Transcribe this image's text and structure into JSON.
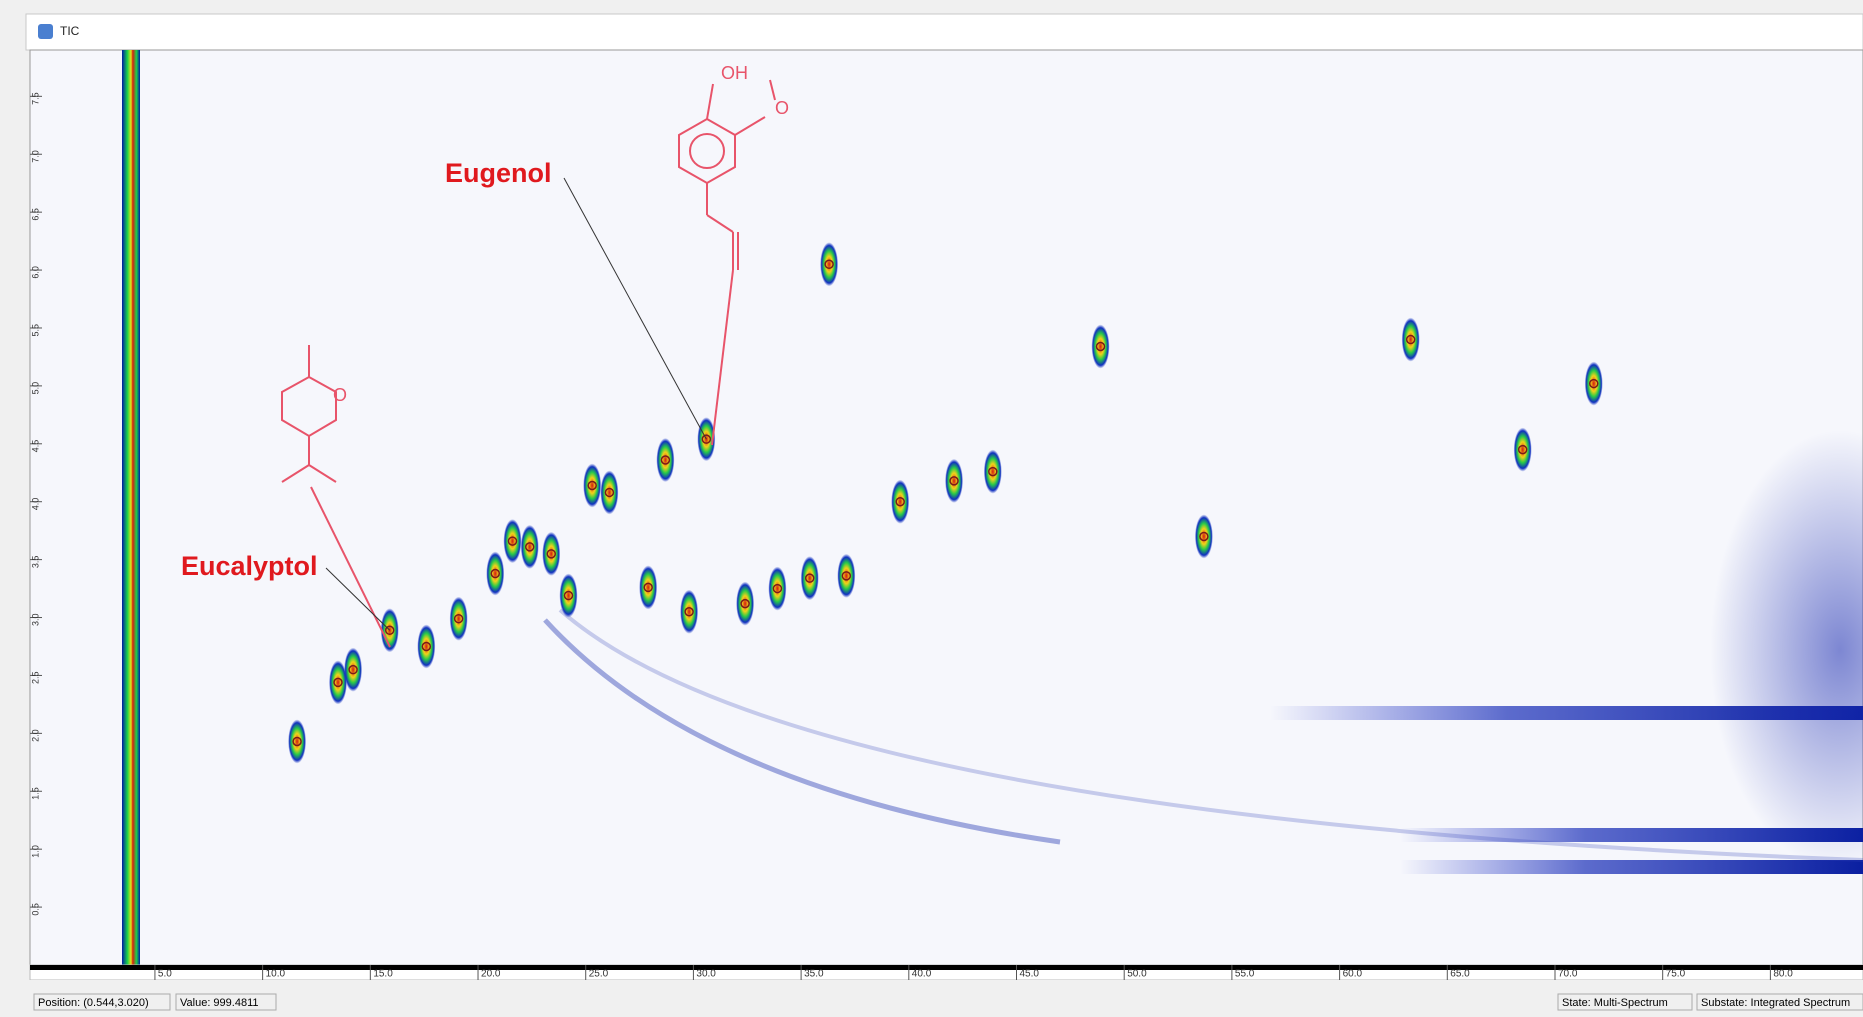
{
  "window": {
    "title": "TIC"
  },
  "plot": {
    "xlim": [
      -0.8,
      84.3
    ],
    "ylim": [
      0,
      7.9
    ],
    "xticks": [
      {
        "value": 5,
        "label": "5.0"
      },
      {
        "value": 10,
        "label": "10.0"
      },
      {
        "value": 15,
        "label": "15.0"
      },
      {
        "value": 20,
        "label": "20.0"
      },
      {
        "value": 25,
        "label": "25.0"
      },
      {
        "value": 30,
        "label": "30.0"
      },
      {
        "value": 35,
        "label": "35.0"
      },
      {
        "value": 40,
        "label": "40.0"
      },
      {
        "value": 45,
        "label": "45.0"
      },
      {
        "value": 50,
        "label": "50.0"
      },
      {
        "value": 55,
        "label": "55.0"
      },
      {
        "value": 60,
        "label": "60.0"
      },
      {
        "value": 65,
        "label": "65.0"
      },
      {
        "value": 70,
        "label": "70.0"
      },
      {
        "value": 75,
        "label": "75.0"
      },
      {
        "value": 80,
        "label": "80.0"
      }
    ],
    "yticks": [
      {
        "value": 0.5,
        "label": "0.5"
      },
      {
        "value": 1,
        "label": "1.0"
      },
      {
        "value": 1.5,
        "label": "1.5"
      },
      {
        "value": 2,
        "label": "2.0"
      },
      {
        "value": 2.5,
        "label": "2.5"
      },
      {
        "value": 3,
        "label": "3.0"
      },
      {
        "value": 3.5,
        "label": "3.5"
      },
      {
        "value": 4,
        "label": "4.0"
      },
      {
        "value": 4.5,
        "label": "4.5"
      },
      {
        "value": 5,
        "label": "5.0"
      },
      {
        "value": 5.5,
        "label": "5.5"
      },
      {
        "value": 6,
        "label": "6.0"
      },
      {
        "value": 6.5,
        "label": "6.5"
      },
      {
        "value": 7,
        "label": "7.0"
      },
      {
        "value": 7.5,
        "label": "7.5"
      }
    ],
    "peaks": {
      "x": [
        11.6,
        13.5,
        14.2,
        15.9,
        17.6,
        19.1,
        20.8,
        21.6,
        22.4,
        23.4,
        24.2,
        25.3,
        26.1,
        27.9,
        28.7,
        29.8,
        30.6,
        32.4,
        33.9,
        35.4,
        36.3,
        37.1,
        39.6,
        42.1,
        43.9,
        48.9,
        53.7,
        63.3,
        68.5,
        71.8
      ],
      "y": [
        1.93,
        2.44,
        2.55,
        2.89,
        2.75,
        2.99,
        3.38,
        3.66,
        3.61,
        3.55,
        3.19,
        4.14,
        4.08,
        3.26,
        4.36,
        3.05,
        4.54,
        3.12,
        3.25,
        3.34,
        6.05,
        3.36,
        4.0,
        4.18,
        4.26,
        5.34,
        3.7,
        5.4,
        4.45,
        5.02
      ]
    },
    "annotations": [
      {
        "text": "Eucalyptol",
        "x": 15.9,
        "y": 2.89
      },
      {
        "text": "Eugenol",
        "x": 30.6,
        "y": 4.54
      }
    ],
    "structure_labels": [
      "OH",
      "O",
      "O"
    ]
  },
  "status": {
    "position": "Position: (0.544,3.020)",
    "value": "Value: 999.4811",
    "state": "State: Multi-Spectrum",
    "substate": "Substate: Integrated Spectrum"
  }
}
